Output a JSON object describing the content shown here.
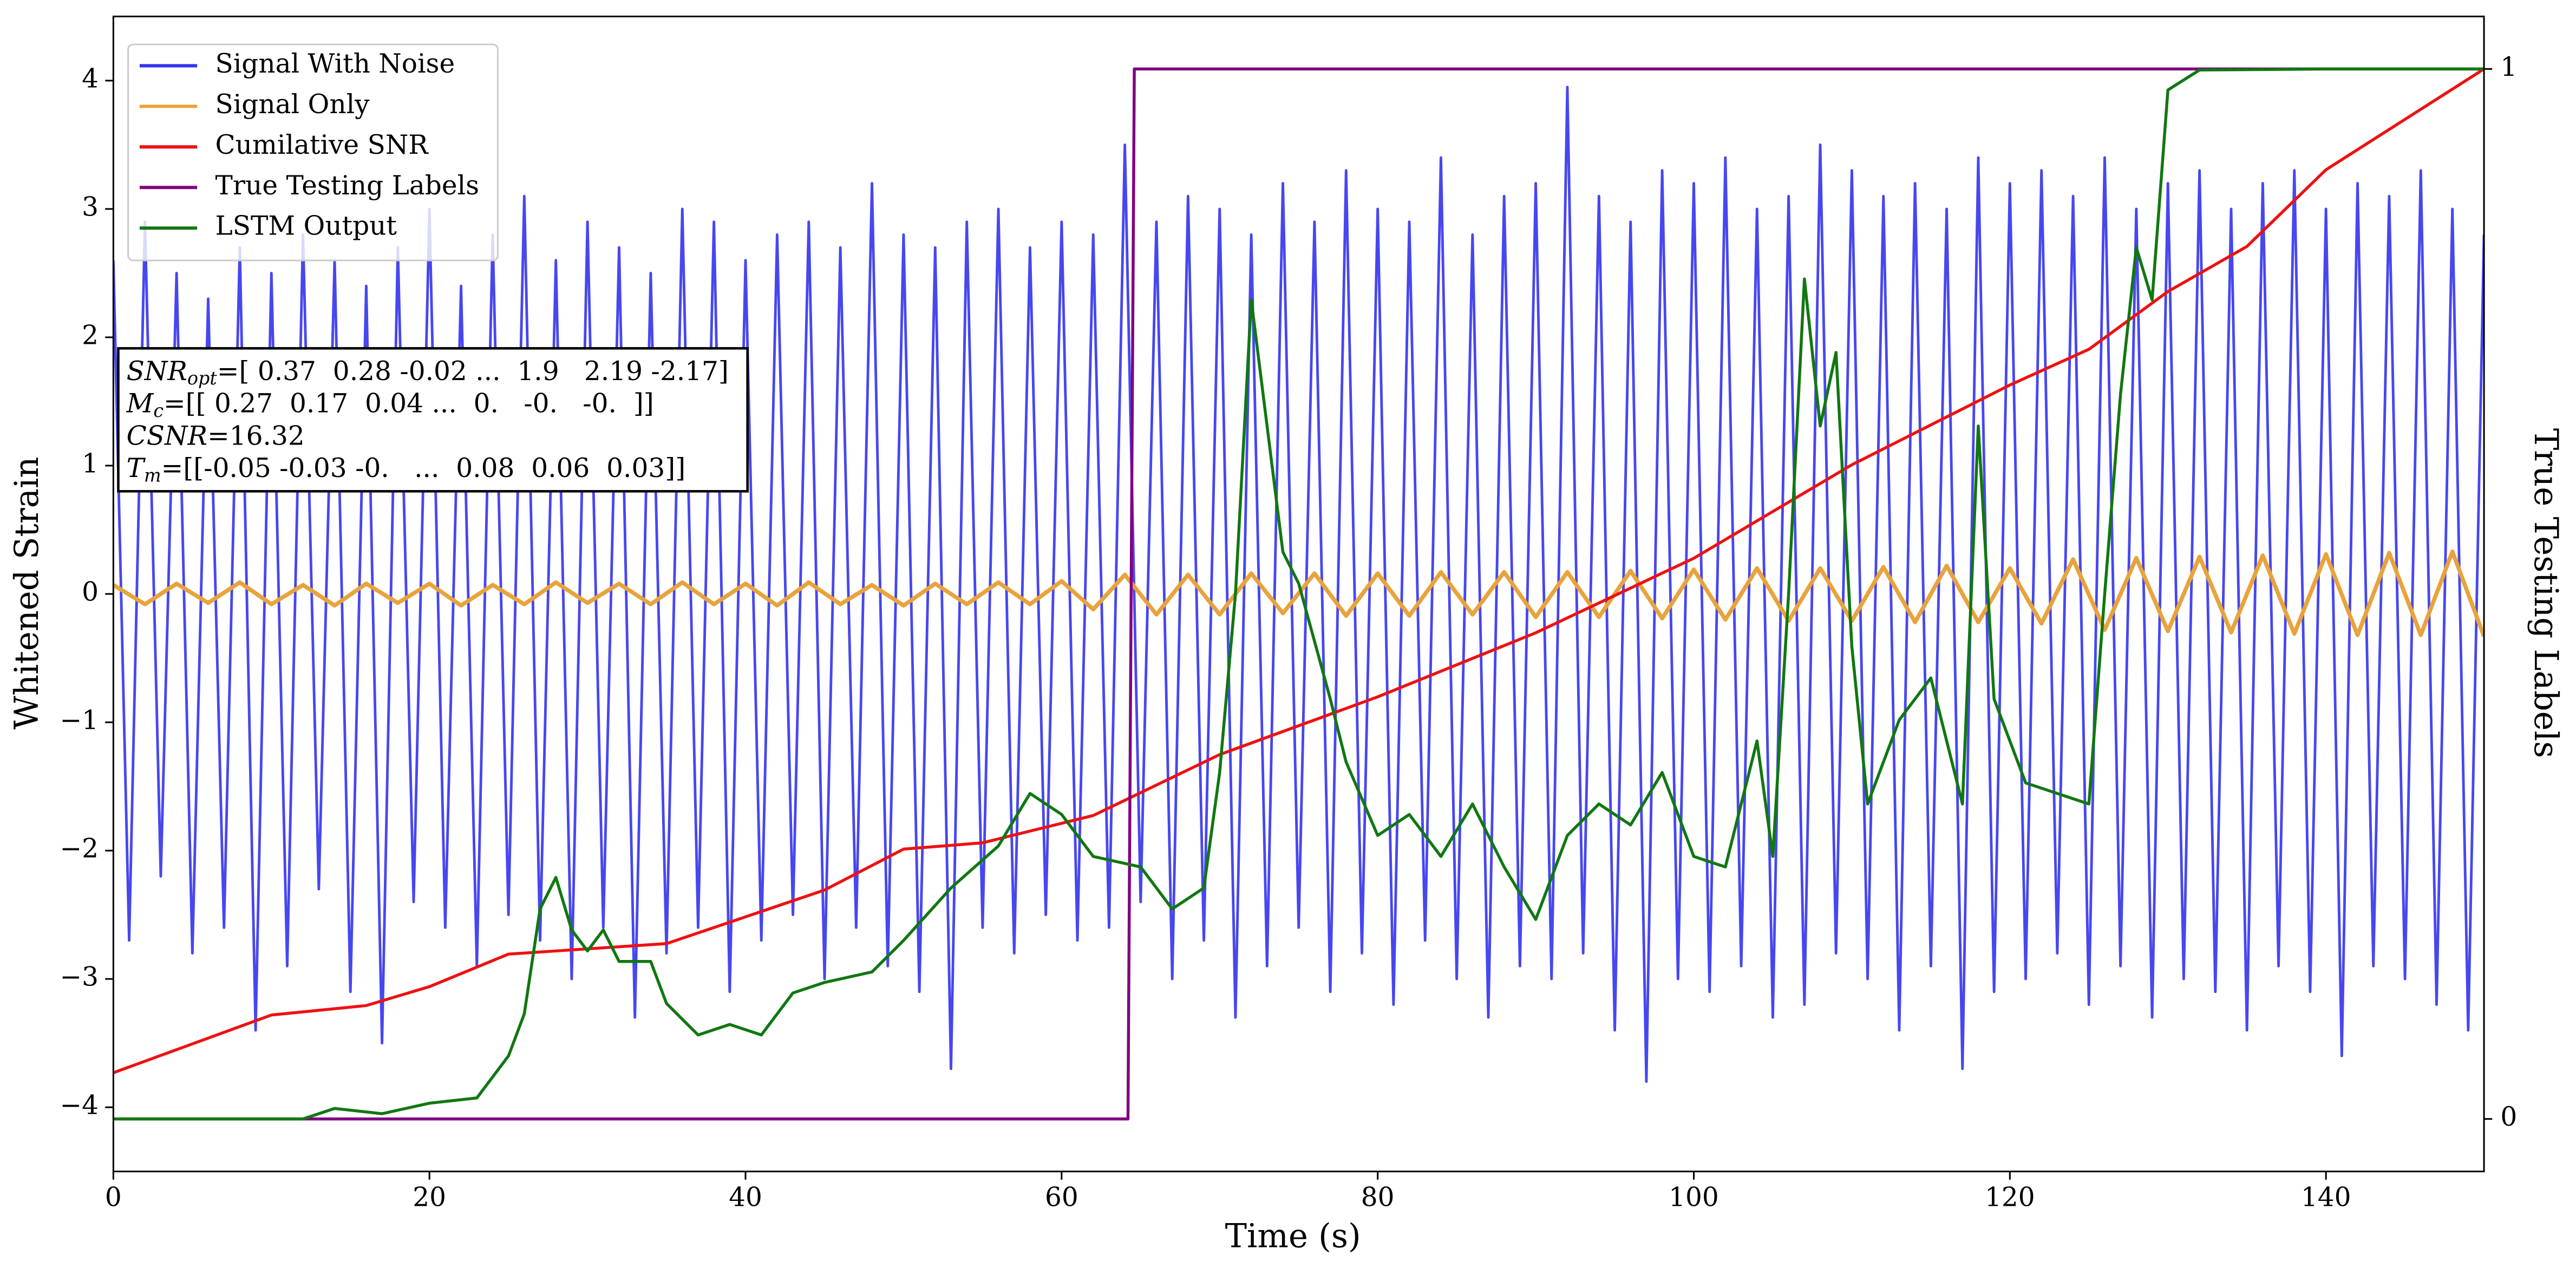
{
  "chart_data": {
    "type": "line",
    "xlabel": "Time (s)",
    "ylabel": "Whitened Strain",
    "y2label": "True Testing Labels",
    "xlim": [
      0,
      150
    ],
    "xticks": [
      0,
      20,
      40,
      60,
      80,
      100,
      120,
      140
    ],
    "ylim": [
      -4.5,
      4.5
    ],
    "yticks": [
      {
        "value": -4,
        "label": "−4"
      },
      {
        "value": -3,
        "label": "−3"
      },
      {
        "value": -2,
        "label": "−2"
      },
      {
        "value": -1,
        "label": "−1"
      },
      0,
      1,
      2,
      3,
      4
    ],
    "y2lim": [
      -0.05,
      1.05
    ],
    "y2ticks": [
      0,
      1
    ],
    "legend": "upper left",
    "annotation": [
      {
        "symbol": "SNR",
        "sub": "opt",
        "text": "=[ 0.37  0.28 -0.02 ...  1.9   2.19 -2.17]"
      },
      {
        "symbol": "M",
        "sub": "c",
        "text": "=[[ 0.27  0.17  0.04 ...  0.   -0.   -0.  ]]"
      },
      {
        "symbol": "CSNR",
        "text": "=16.32"
      },
      {
        "symbol": "T",
        "sub": "m",
        "text": "=[[-0.05 -0.03 -0.   ...  0.08  0.06  0.03]]"
      }
    ],
    "series": [
      {
        "name": "Signal With Noise",
        "color": "#3333ee",
        "axis": "y",
        "x": [
          0,
          1,
          2,
          3,
          4,
          5,
          6,
          7,
          8,
          9,
          10,
          11,
          12,
          13,
          14,
          15,
          16,
          17,
          18,
          19,
          20,
          21,
          22,
          23,
          24,
          25,
          26,
          27,
          28,
          29,
          30,
          31,
          32,
          33,
          34,
          35,
          36,
          37,
          38,
          39,
          40,
          41,
          42,
          43,
          44,
          45,
          46,
          47,
          48,
          49,
          50,
          51,
          52,
          53,
          54,
          55,
          56,
          57,
          58,
          59,
          60,
          61,
          62,
          63,
          64,
          65,
          66,
          67,
          68,
          69,
          70,
          71,
          72,
          73,
          74,
          75,
          76,
          77,
          78,
          79,
          80,
          81,
          82,
          83,
          84,
          85,
          86,
          87,
          88,
          89,
          90,
          91,
          92,
          93,
          94,
          95,
          96,
          97,
          98,
          99,
          100,
          101,
          102,
          103,
          104,
          105,
          106,
          107,
          108,
          109,
          110,
          111,
          112,
          113,
          114,
          115,
          116,
          117,
          118,
          119,
          120,
          121,
          122,
          123,
          124,
          125,
          126,
          127,
          128,
          129,
          130,
          131,
          132,
          133,
          134,
          135,
          136,
          137,
          138,
          139,
          140,
          141,
          142,
          143,
          144,
          145,
          146,
          147,
          148,
          149,
          150
        ],
        "values": [
          2.6,
          -2.7,
          2.9,
          -2.2,
          2.5,
          -2.8,
          2.3,
          -2.6,
          2.7,
          -3.4,
          2.5,
          -2.9,
          2.8,
          -2.3,
          2.6,
          -3.1,
          2.4,
          -3.5,
          2.7,
          -2.4,
          3.0,
          -2.6,
          2.4,
          -2.9,
          2.8,
          -2.5,
          3.1,
          -2.7,
          2.6,
          -3.0,
          2.9,
          -2.6,
          2.7,
          -3.3,
          2.5,
          -2.8,
          3.0,
          -2.6,
          2.9,
          -3.1,
          2.6,
          -2.7,
          2.8,
          -2.5,
          2.9,
          -3.0,
          2.7,
          -2.6,
          3.2,
          -2.9,
          2.8,
          -3.1,
          2.7,
          -3.7,
          2.9,
          -2.6,
          3.0,
          -2.8,
          2.7,
          -2.5,
          2.9,
          -2.7,
          2.8,
          -2.6,
          3.5,
          -2.4,
          2.9,
          -3.0,
          3.1,
          -2.7,
          3.0,
          -3.3,
          2.8,
          -2.9,
          3.2,
          -2.6,
          2.9,
          -3.1,
          3.3,
          -2.8,
          3.0,
          -3.2,
          2.9,
          -2.7,
          3.4,
          -3.0,
          2.8,
          -3.3,
          3.1,
          -2.9,
          3.2,
          -3.0,
          3.95,
          -2.8,
          3.1,
          -3.4,
          2.9,
          -3.8,
          3.3,
          -3.0,
          3.2,
          -3.1,
          3.4,
          -2.9,
          3.0,
          -3.3,
          3.1,
          -3.2,
          3.5,
          -2.8,
          3.3,
          -3.0,
          3.1,
          -3.4,
          3.2,
          -2.9,
          3.0,
          -3.7,
          3.4,
          -3.1,
          3.2,
          -3.0,
          3.3,
          -2.8,
          3.1,
          -3.2,
          3.4,
          -2.9,
          3.0,
          -3.3,
          3.2,
          -3.0,
          3.3,
          -3.1,
          3.0,
          -3.4,
          3.2,
          -2.9,
          3.3,
          -3.1,
          3.0,
          -3.6,
          3.2,
          -2.9,
          3.1,
          -3.0,
          3.3,
          -3.2,
          3.0,
          -3.4,
          2.8
        ]
      },
      {
        "name": "Signal Only",
        "color": "#e8a33c",
        "axis": "y",
        "x": [
          0,
          2,
          4,
          6,
          8,
          10,
          12,
          14,
          16,
          18,
          20,
          22,
          24,
          26,
          28,
          30,
          32,
          34,
          36,
          38,
          40,
          42,
          44,
          46,
          48,
          50,
          52,
          54,
          56,
          58,
          60,
          62,
          64,
          66,
          68,
          70,
          72,
          74,
          76,
          78,
          80,
          82,
          84,
          86,
          88,
          90,
          92,
          94,
          96,
          98,
          100,
          102,
          104,
          106,
          108,
          110,
          112,
          114,
          116,
          118,
          120,
          122,
          124,
          126,
          128,
          130,
          132,
          134,
          136,
          138,
          140,
          142,
          144,
          146,
          148,
          150
        ],
        "values": [
          0.07,
          -0.08,
          0.08,
          -0.07,
          0.09,
          -0.08,
          0.07,
          -0.09,
          0.08,
          -0.07,
          0.08,
          -0.09,
          0.07,
          -0.08,
          0.09,
          -0.07,
          0.08,
          -0.08,
          0.09,
          -0.08,
          0.08,
          -0.09,
          0.09,
          -0.08,
          0.07,
          -0.09,
          0.08,
          -0.08,
          0.09,
          -0.08,
          0.1,
          -0.12,
          0.15,
          -0.16,
          0.15,
          -0.16,
          0.16,
          -0.15,
          0.16,
          -0.17,
          0.16,
          -0.17,
          0.17,
          -0.16,
          0.17,
          -0.18,
          0.17,
          -0.18,
          0.18,
          -0.19,
          0.19,
          -0.2,
          0.2,
          -0.21,
          0.2,
          -0.21,
          0.21,
          -0.22,
          0.22,
          -0.22,
          0.2,
          -0.23,
          0.27,
          -0.28,
          0.28,
          -0.29,
          0.29,
          -0.3,
          0.3,
          -0.31,
          0.31,
          -0.32,
          0.32,
          -0.32,
          0.33,
          -0.33
        ]
      },
      {
        "name": "Cumilative SNR",
        "color": "#ee1111",
        "axis": "y2",
        "x": [
          0,
          10,
          16,
          20,
          25,
          35,
          45,
          50,
          55,
          62,
          70,
          80,
          90,
          100,
          110,
          120,
          125,
          130,
          135,
          140,
          150
        ],
        "values": [
          0.044,
          0.099,
          0.108,
          0.126,
          0.157,
          0.167,
          0.218,
          0.257,
          0.263,
          0.289,
          0.347,
          0.402,
          0.463,
          0.534,
          0.623,
          0.699,
          0.733,
          0.788,
          0.831,
          0.904,
          1.0
        ]
      },
      {
        "name": "True Testing Labels",
        "color": "#800080",
        "axis": "y2",
        "x": [
          0,
          64.2,
          64.6,
          150
        ],
        "values": [
          0,
          0,
          1,
          1
        ]
      },
      {
        "name": "LSTM Output",
        "color": "#117711",
        "axis": "y2",
        "x": [
          0,
          12,
          14,
          17,
          20,
          23,
          25,
          26,
          27,
          28,
          29,
          30,
          31,
          32,
          34,
          35,
          37,
          39,
          41,
          43,
          45,
          48,
          50,
          53,
          56,
          58,
          60,
          62,
          65,
          67,
          69,
          70,
          71,
          72,
          74,
          75,
          77,
          78,
          80,
          82,
          84,
          86,
          88,
          90,
          92,
          94,
          96,
          98,
          100,
          102,
          104,
          105,
          106,
          107,
          108,
          109,
          110,
          111,
          113,
          115,
          117,
          118,
          119,
          121,
          123,
          125,
          126,
          127,
          128,
          129,
          130,
          132,
          140,
          150
        ],
        "values": [
          0,
          0,
          0.01,
          0.005,
          0.015,
          0.02,
          0.06,
          0.1,
          0.2,
          0.23,
          0.18,
          0.16,
          0.18,
          0.15,
          0.15,
          0.11,
          0.08,
          0.09,
          0.08,
          0.12,
          0.13,
          0.14,
          0.17,
          0.22,
          0.26,
          0.31,
          0.29,
          0.25,
          0.24,
          0.2,
          0.22,
          0.33,
          0.5,
          0.78,
          0.54,
          0.51,
          0.4,
          0.34,
          0.27,
          0.29,
          0.25,
          0.3,
          0.24,
          0.19,
          0.27,
          0.3,
          0.28,
          0.33,
          0.25,
          0.24,
          0.36,
          0.25,
          0.5,
          0.8,
          0.66,
          0.73,
          0.45,
          0.3,
          0.38,
          0.42,
          0.3,
          0.66,
          0.4,
          0.32,
          0.31,
          0.3,
          0.5,
          0.69,
          0.83,
          0.78,
          0.98,
          0.999,
          1.0,
          1.0
        ]
      }
    ]
  }
}
